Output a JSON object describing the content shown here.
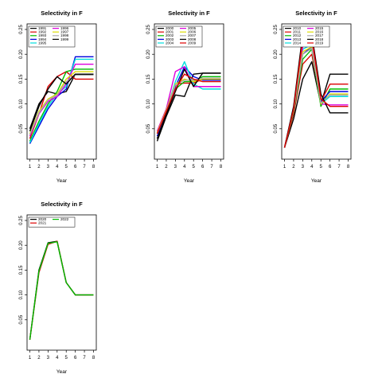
{
  "chart_data": [
    {
      "type": "line",
      "title": "Selectivity in F",
      "xlabel": "Year",
      "ylabel": "",
      "x": [
        1,
        2,
        3,
        4,
        5,
        6,
        7,
        8
      ],
      "ylim": [
        0,
        0.25
      ],
      "yticks": [
        "0.05",
        "0.10",
        "0.15",
        "0.20",
        "0.25"
      ],
      "legend_position": "top-left",
      "series": [
        {
          "name": "1991",
          "color": "#000000",
          "values": [
            0.05,
            0.1,
            0.125,
            0.12,
            0.125,
            0.16,
            0.16,
            0.16
          ]
        },
        {
          "name": "1992",
          "color": "#dd0000",
          "values": [
            0.03,
            0.08,
            0.135,
            0.155,
            0.165,
            0.15,
            0.15,
            0.15
          ]
        },
        {
          "name": "1993",
          "color": "#00bb00",
          "values": [
            0.025,
            0.065,
            0.1,
            0.125,
            0.165,
            0.17,
            0.17,
            0.17
          ]
        },
        {
          "name": "1994",
          "color": "#0000dd",
          "values": [
            0.02,
            0.055,
            0.09,
            0.115,
            0.13,
            0.195,
            0.195,
            0.195
          ]
        },
        {
          "name": "1995",
          "color": "#00dddd",
          "values": [
            0.022,
            0.06,
            0.095,
            0.12,
            0.135,
            0.19,
            0.19,
            0.19
          ]
        },
        {
          "name": "1996",
          "color": "#dd00dd",
          "values": [
            0.035,
            0.08,
            0.105,
            0.115,
            0.14,
            0.18,
            0.18,
            0.18
          ]
        },
        {
          "name": "1997",
          "color": "#dddd00",
          "values": [
            0.04,
            0.085,
            0.11,
            0.12,
            0.15,
            0.165,
            0.165,
            0.165
          ]
        },
        {
          "name": "1998",
          "color": "#aaaaaa",
          "values": [
            0.038,
            0.082,
            0.108,
            0.118,
            0.145,
            0.158,
            0.158,
            0.158
          ]
        },
        {
          "name": "1999",
          "color": "#000000",
          "values": [
            0.045,
            0.095,
            0.13,
            0.155,
            0.14,
            0.16,
            0.16,
            0.16
          ]
        }
      ]
    },
    {
      "type": "line",
      "title": "Selectivity in F",
      "xlabel": "Year",
      "ylabel": "",
      "x": [
        1,
        2,
        3,
        4,
        5,
        6,
        7,
        8
      ],
      "ylim": [
        0,
        0.25
      ],
      "yticks": [
        "0.05",
        "0.10",
        "0.15",
        "0.20",
        "0.25"
      ],
      "legend_position": "top-left",
      "series": [
        {
          "name": "2000",
          "color": "#000000",
          "values": [
            0.025,
            0.075,
            0.118,
            0.115,
            0.16,
            0.162,
            0.162,
            0.162
          ]
        },
        {
          "name": "2001",
          "color": "#dd0000",
          "values": [
            0.045,
            0.09,
            0.14,
            0.142,
            0.142,
            0.15,
            0.15,
            0.15
          ]
        },
        {
          "name": "2002",
          "color": "#00bb00",
          "values": [
            0.04,
            0.085,
            0.13,
            0.145,
            0.145,
            0.155,
            0.155,
            0.155
          ]
        },
        {
          "name": "2003",
          "color": "#0000dd",
          "values": [
            0.035,
            0.08,
            0.135,
            0.175,
            0.155,
            0.148,
            0.148,
            0.148
          ]
        },
        {
          "name": "2004",
          "color": "#00dddd",
          "values": [
            0.04,
            0.085,
            0.145,
            0.185,
            0.14,
            0.13,
            0.13,
            0.13
          ]
        },
        {
          "name": "2005",
          "color": "#dd00dd",
          "values": [
            0.045,
            0.09,
            0.165,
            0.175,
            0.135,
            0.135,
            0.135,
            0.135
          ]
        },
        {
          "name": "2006",
          "color": "#dddd00",
          "values": [
            0.042,
            0.088,
            0.14,
            0.15,
            0.145,
            0.15,
            0.15,
            0.15
          ]
        },
        {
          "name": "2007",
          "color": "#aaaaaa",
          "values": [
            0.04,
            0.086,
            0.138,
            0.148,
            0.148,
            0.152,
            0.152,
            0.152
          ]
        },
        {
          "name": "2008",
          "color": "#000000",
          "values": [
            0.03,
            0.08,
            0.125,
            0.17,
            0.135,
            0.162,
            0.162,
            0.162
          ]
        },
        {
          "name": "2009",
          "color": "#dd0000",
          "values": [
            0.04,
            0.085,
            0.13,
            0.16,
            0.15,
            0.145,
            0.145,
            0.145
          ]
        }
      ]
    },
    {
      "type": "line",
      "title": "Selectivity in F",
      "xlabel": "Year",
      "ylabel": "",
      "x": [
        1,
        2,
        3,
        4,
        5,
        6,
        7,
        8
      ],
      "ylim": [
        0,
        0.25
      ],
      "yticks": [
        "0.05",
        "0.10",
        "0.15",
        "0.20",
        "0.25"
      ],
      "legend_position": "top-left",
      "series": [
        {
          "name": "2010",
          "color": "#000000",
          "values": [
            0.012,
            0.07,
            0.15,
            0.185,
            0.1,
            0.16,
            0.16,
            0.16
          ]
        },
        {
          "name": "2011",
          "color": "#dd0000",
          "values": [
            0.012,
            0.08,
            0.18,
            0.2,
            0.105,
            0.14,
            0.14,
            0.14
          ]
        },
        {
          "name": "2012",
          "color": "#00bb00",
          "values": [
            0.012,
            0.085,
            0.19,
            0.21,
            0.095,
            0.13,
            0.13,
            0.13
          ]
        },
        {
          "name": "2013",
          "color": "#0000dd",
          "values": [
            0.012,
            0.09,
            0.2,
            0.215,
            0.105,
            0.125,
            0.125,
            0.125
          ]
        },
        {
          "name": "2014",
          "color": "#00dddd",
          "values": [
            0.012,
            0.095,
            0.21,
            0.22,
            0.1,
            0.115,
            0.115,
            0.115
          ]
        },
        {
          "name": "2015",
          "color": "#dd00dd",
          "values": [
            0.012,
            0.092,
            0.215,
            0.225,
            0.1,
            0.098,
            0.098,
            0.098
          ]
        },
        {
          "name": "2016",
          "color": "#dddd00",
          "values": [
            0.012,
            0.09,
            0.205,
            0.215,
            0.1,
            0.12,
            0.12,
            0.12
          ]
        },
        {
          "name": "2017",
          "color": "#aaaaaa",
          "values": [
            0.012,
            0.088,
            0.2,
            0.212,
            0.102,
            0.118,
            0.118,
            0.118
          ]
        },
        {
          "name": "2018",
          "color": "#000000",
          "values": [
            0.012,
            0.095,
            0.24,
            0.24,
            0.12,
            0.082,
            0.082,
            0.082
          ]
        },
        {
          "name": "2019",
          "color": "#dd0000",
          "values": [
            0.012,
            0.09,
            0.23,
            0.235,
            0.11,
            0.095,
            0.095,
            0.095
          ]
        }
      ]
    },
    {
      "type": "line",
      "title": "Selectivity in F",
      "xlabel": "Year",
      "ylabel": "",
      "x": [
        1,
        2,
        3,
        4,
        5,
        6,
        7,
        8
      ],
      "ylim": [
        0,
        0.25
      ],
      "yticks": [
        "0.05",
        "0.10",
        "0.15",
        "0.20",
        "0.25"
      ],
      "legend_position": "top-left",
      "series": [
        {
          "name": "2020",
          "color": "#000000",
          "values": [
            0.01,
            0.15,
            0.205,
            0.208,
            0.125,
            0.1,
            0.1,
            0.1
          ]
        },
        {
          "name": "2021",
          "color": "#dd0000",
          "values": [
            0.01,
            0.145,
            0.202,
            0.208,
            0.125,
            0.1,
            0.1,
            0.1
          ]
        },
        {
          "name": "2022",
          "color": "#00bb00",
          "values": [
            0.01,
            0.148,
            0.204,
            0.207,
            0.125,
            0.1,
            0.1,
            0.1
          ]
        }
      ]
    }
  ]
}
